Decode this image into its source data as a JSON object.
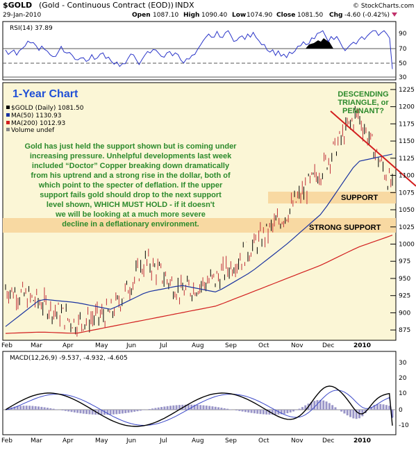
{
  "header": {
    "symbol": "$GOLD",
    "contract": "(Gold - Continuous Contract (EOD))",
    "exchange": "INDX",
    "date": "29-Jan-2010",
    "open_label": "Open",
    "open": "1087.10",
    "high_label": "High",
    "high": "1090.40",
    "low_label": "Low",
    "low": "1074.90",
    "close_label": "Close",
    "close": "1081.50",
    "chg_label": "Chg",
    "chg": "-4.60 (-0.42%)",
    "credit": "© StockCharts.com"
  },
  "rsi_panel": {
    "label": "RSI(14) 37.89",
    "y_ticks": [
      "90",
      "70",
      "50",
      "30"
    ]
  },
  "price_panel": {
    "chart_title": "1-Year Chart",
    "legend": [
      {
        "text": "$GOLD (Daily) 1081.50",
        "color": "#000000"
      },
      {
        "text": "MA(50) 1130.93",
        "color": "#1a33a0"
      },
      {
        "text": "MA(200) 1012.93",
        "color": "#d21e1e"
      },
      {
        "text": "Volume undef",
        "color": "#888888"
      }
    ],
    "y_ticks": [
      "1225",
      "1200",
      "1175",
      "1150",
      "1125",
      "1100",
      "1075",
      "1050",
      "1025",
      "1000",
      "975",
      "950",
      "925",
      "900",
      "875"
    ],
    "commentary": [
      "Gold has just held the support shown but is coming under",
      "increasing pressure. Unhelpful developments last week",
      "included “Doctor” Copper breaking down dramatically",
      "from his uptrend and a strong rise in the dollar, both of",
      "which point to the specter of deflation. If the upper",
      "support fails gold should drop to the next support",
      "level shown, WHICH MUST HOLD - if it doesn't",
      "we will be looking at a much more severe",
      "decline in a deflationary environment."
    ],
    "pattern_note": [
      "DESCENDING",
      "TRIANGLE, or",
      "PENNANT?"
    ],
    "support_label": "SUPPORT",
    "strong_support_label": "STRONG SUPPORT"
  },
  "macd_panel": {
    "label": "MACD(12,26,9) -9.537, -4.932, -4.605",
    "y_ticks": [
      "30",
      "20",
      "10",
      "0",
      "-10"
    ]
  },
  "x_axis": [
    "Feb",
    "Mar",
    "Apr",
    "May",
    "Jun",
    "Jul",
    "Aug",
    "Sep",
    "Oct",
    "Nov",
    "Dec",
    "2010"
  ],
  "colors": {
    "price_panel_bg": "#fbf6d6",
    "support_band": "#f8d9a2",
    "ma50": "#1a33a0",
    "ma200": "#d21e1e",
    "trendline": "#d21e1e",
    "annotation_green": "#2c8a2c",
    "title_blue": "#1f4fd6",
    "macd_hist": "#9a96c8"
  },
  "chart_data": {
    "type": "line",
    "title": "$GOLD (Daily)",
    "x": [
      "Feb",
      "Mar",
      "Apr",
      "May",
      "Jun",
      "Jul",
      "Aug",
      "Sep",
      "Oct",
      "Nov",
      "Dec",
      "Jan 2010"
    ],
    "ylim": [
      860,
      1235
    ],
    "series": [
      {
        "name": "$GOLD (Daily)",
        "values": [
          935,
          915,
          885,
          900,
          975,
          930,
          950,
          995,
          1045,
          1110,
          1190,
          1082
        ]
      },
      {
        "name": "MA(50)",
        "values": [
          880,
          920,
          915,
          905,
          930,
          940,
          930,
          960,
          1000,
          1045,
          1120,
          1131
        ]
      },
      {
        "name": "MA(200)",
        "values": [
          870,
          872,
          870,
          880,
          890,
          900,
          910,
          930,
          950,
          970,
          995,
          1013
        ]
      }
    ],
    "rsi": {
      "ylim": [
        25,
        95
      ],
      "last": 37.89
    },
    "macd": {
      "macd": -9.537,
      "signal": -4.932,
      "histogram": -4.605,
      "ylim": [
        -15,
        35
      ]
    }
  }
}
